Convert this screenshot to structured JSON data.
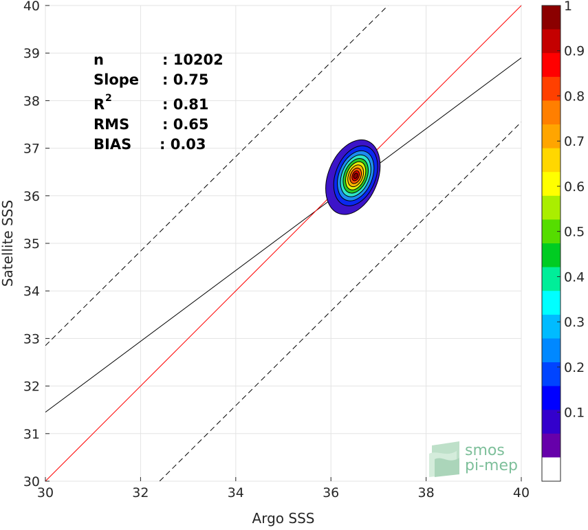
{
  "chart_data": {
    "type": "scatter",
    "xlabel": "Argo SSS",
    "ylabel": "Satellite SSS",
    "xlim": [
      30,
      40
    ],
    "ylim": [
      30,
      40
    ],
    "xticks": [
      30,
      32,
      34,
      36,
      38,
      40
    ],
    "yticks": [
      30,
      31,
      32,
      33,
      34,
      35,
      36,
      37,
      38,
      39,
      40
    ],
    "grid": true,
    "stats": {
      "n_label": "n",
      "n_value": ": 10202",
      "slope_label": "Slope",
      "slope_value": ": 0.75",
      "r2_label": "R",
      "r2_sup": "2",
      "r2_value": ": 0.81",
      "rms_label": "RMS",
      "rms_value": ": 0.65",
      "bias_label": "BIAS",
      "bias_value": ": 0.03"
    },
    "lines": {
      "identity": {
        "x": [
          30,
          40
        ],
        "y": [
          30,
          40
        ],
        "color": "#ff0000"
      },
      "regression": {
        "x": [
          30,
          40
        ],
        "y": [
          31.45,
          38.9
        ],
        "color": "#000000"
      },
      "upper_dashed": {
        "x": [
          30,
          37.2
        ],
        "y": [
          32.85,
          40
        ],
        "color": "#000000"
      },
      "lower_dashed": {
        "x": [
          32.4,
          40
        ],
        "y": [
          30,
          37.55
        ],
        "color": "#000000"
      }
    },
    "density_peak": {
      "x": 36.52,
      "y": 36.42
    },
    "density_levels": [
      {
        "level": 0.1,
        "color": "#3c14c8",
        "dx": 0.52,
        "dy": 0.82
      },
      {
        "level": 0.2,
        "color": "#0a28f0",
        "dx": 0.42,
        "dy": 0.66
      },
      {
        "level": 0.3,
        "color": "#1c8cf0",
        "dx": 0.35,
        "dy": 0.55
      },
      {
        "level": 0.4,
        "color": "#2ee6c8",
        "dx": 0.29,
        "dy": 0.46
      },
      {
        "level": 0.5,
        "color": "#28c828",
        "dx": 0.24,
        "dy": 0.38
      },
      {
        "level": 0.6,
        "color": "#e6f00a",
        "dx": 0.19,
        "dy": 0.31
      },
      {
        "level": 0.7,
        "color": "#ffb400",
        "dx": 0.15,
        "dy": 0.24
      },
      {
        "level": 0.8,
        "color": "#ff5a00",
        "dx": 0.11,
        "dy": 0.17
      },
      {
        "level": 0.9,
        "color": "#e60000",
        "dx": 0.07,
        "dy": 0.11
      },
      {
        "level": 1.0,
        "color": "#8c0000",
        "dx": 0.04,
        "dy": 0.06
      }
    ],
    "colorbar": {
      "ticks": [
        1,
        0.9,
        0.8,
        0.7,
        0.6,
        0.5,
        0.4,
        0.3,
        0.2,
        0.1
      ],
      "colors": [
        "#8b0000",
        "#c40000",
        "#ff0000",
        "#ff4000",
        "#ff7f00",
        "#ffa500",
        "#ffd700",
        "#ffff00",
        "#aaee00",
        "#55dd00",
        "#00cc22",
        "#00ee99",
        "#00ffff",
        "#00bbff",
        "#0088ff",
        "#0044ff",
        "#0000ff",
        "#3300cc",
        "#6600aa",
        "#ffffff"
      ]
    },
    "logo": {
      "line1": "smos",
      "line2": "pi-mep",
      "color": "#7dbf9a"
    }
  }
}
